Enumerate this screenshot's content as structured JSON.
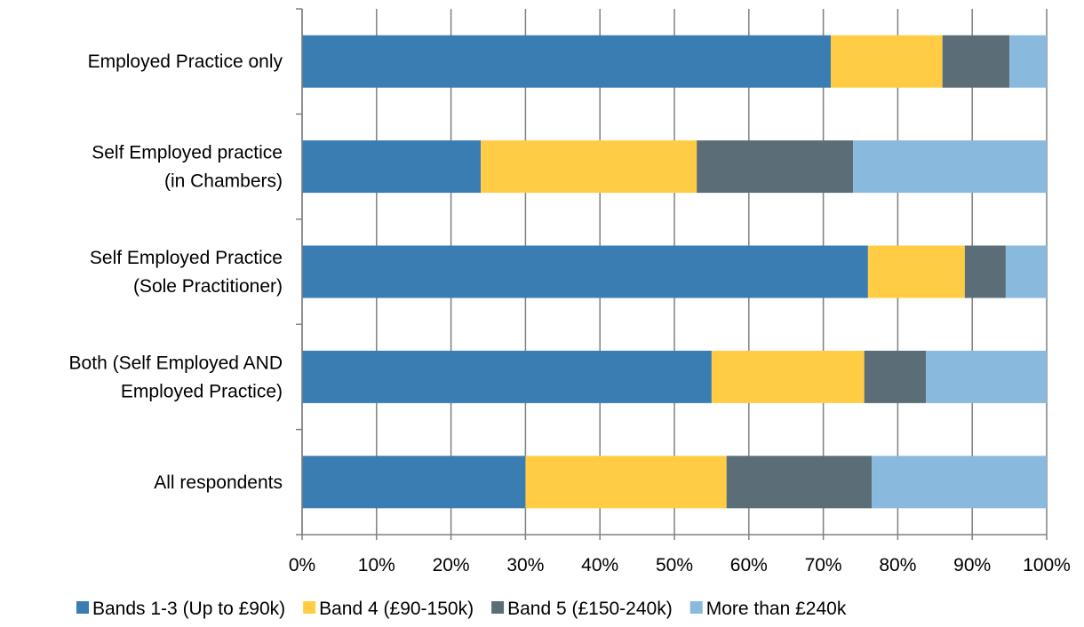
{
  "chart_data": {
    "type": "bar",
    "orientation": "horizontal",
    "stacked": true,
    "stacking": "percent",
    "title": "",
    "xlabel": "",
    "ylabel": "",
    "categories": [
      [
        "Employed Practice only"
      ],
      [
        "Self Employed practice",
        "(in Chambers)"
      ],
      [
        "Self Employed Practice",
        "(Sole Practitioner)"
      ],
      [
        "Both (Self Employed AND",
        "Employed Practice)"
      ],
      [
        "All respondents"
      ]
    ],
    "xlim": [
      0,
      100
    ],
    "xticks": [
      "0%",
      "10%",
      "20%",
      "30%",
      "40%",
      "50%",
      "60%",
      "70%",
      "80%",
      "90%",
      "100%"
    ],
    "grid": "vertical",
    "legend_position": "bottom",
    "series": [
      {
        "name": "Bands 1-3 (Up to £90k)",
        "color": "#3A7DB3",
        "values": [
          71,
          24,
          76,
          55,
          30
        ]
      },
      {
        "name": "Band 4 (£90-150k)",
        "color": "#FFCC44",
        "values": [
          15,
          29,
          13,
          20.5,
          27
        ]
      },
      {
        "name": "Band 5 (£150-240k)",
        "color": "#5B6E78",
        "values": [
          9,
          21,
          5.5,
          8.3,
          19.5
        ]
      },
      {
        "name": "More than £240k",
        "color": "#8AB9DE",
        "values": [
          5,
          26,
          5.5,
          16.2,
          23.5
        ]
      }
    ]
  }
}
